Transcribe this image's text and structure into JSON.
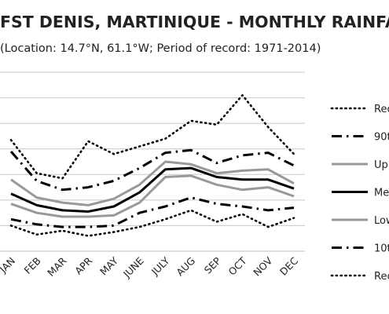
{
  "chart_data": {
    "type": "line",
    "title": "FST DENIS, MARTINIQUE - MONTHLY RAINFALL",
    "subtitle": "(Location: 14.7°N, 61.1°W; Period of record: 1971-2014)",
    "xlabel": "",
    "ylabel": "",
    "categories": [
      "JAN",
      "FEB",
      "MAR",
      "APR",
      "MAY",
      "JUNE",
      "JULY",
      "AUG",
      "SEP",
      "OCT",
      "NOV",
      "DEC"
    ],
    "legend_position": "right",
    "grid": true,
    "series": [
      {
        "name": "Rec",
        "style": "dotted",
        "color": "#000000",
        "values": [
          8.7,
          6.1,
          5.7,
          8.6,
          7.6,
          8.2,
          8.8,
          10.2,
          9.9,
          12.2,
          9.7,
          7.6
        ]
      },
      {
        "name": "90t",
        "style": "dashdot",
        "color": "#000000",
        "values": [
          7.8,
          5.5,
          4.8,
          5.0,
          5.5,
          6.5,
          7.7,
          7.9,
          6.9,
          7.5,
          7.7,
          6.7
        ]
      },
      {
        "name": "Up",
        "style": "solid-gray",
        "color": "#999999",
        "values": [
          5.6,
          4.2,
          3.8,
          3.6,
          4.1,
          5.2,
          7.0,
          6.8,
          6.1,
          6.3,
          6.4,
          5.3
        ]
      },
      {
        "name": "Me",
        "style": "solid",
        "color": "#000000",
        "values": [
          4.5,
          3.6,
          3.2,
          3.1,
          3.5,
          4.6,
          6.4,
          6.5,
          5.8,
          5.6,
          5.6,
          4.9
        ]
      },
      {
        "name": "Low",
        "style": "solid-gray",
        "color": "#999999",
        "values": [
          3.7,
          3.0,
          2.7,
          2.7,
          2.8,
          3.8,
          5.8,
          5.9,
          5.2,
          4.8,
          5.0,
          4.3
        ]
      },
      {
        "name": "10t",
        "style": "dashdot",
        "color": "#000000",
        "values": [
          2.5,
          2.1,
          1.9,
          1.9,
          2.0,
          3.0,
          3.5,
          4.2,
          3.7,
          3.5,
          3.2,
          3.4
        ]
      },
      {
        "name": "Rec",
        "style": "dotted",
        "color": "#000000",
        "values": [
          2.0,
          1.3,
          1.6,
          1.2,
          1.5,
          1.9,
          2.5,
          3.2,
          2.3,
          2.9,
          1.9,
          2.6
        ]
      }
    ]
  }
}
